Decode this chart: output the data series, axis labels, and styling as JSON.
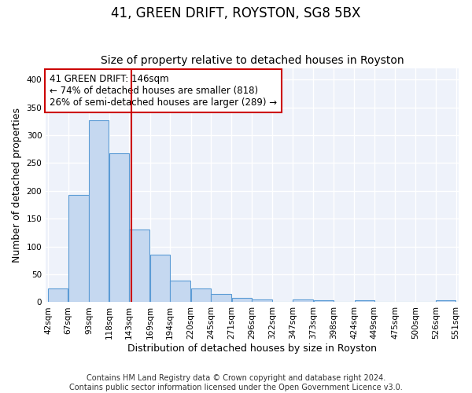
{
  "title": "41, GREEN DRIFT, ROYSTON, SG8 5BX",
  "subtitle": "Size of property relative to detached houses in Royston",
  "xlabel": "Distribution of detached houses by size in Royston",
  "ylabel": "Number of detached properties",
  "bin_edges": [
    42,
    67,
    93,
    118,
    143,
    169,
    194,
    220,
    245,
    271,
    296,
    322,
    347,
    373,
    398,
    424,
    449,
    475,
    500,
    526,
    551
  ],
  "bar_heights": [
    25,
    193,
    327,
    267,
    131,
    86,
    39,
    25,
    15,
    8,
    5,
    0,
    5,
    3,
    0,
    4,
    0,
    0,
    0,
    3
  ],
  "bar_color": "#c5d8f0",
  "bar_edge_color": "#5b9bd5",
  "background_color": "#eef2fa",
  "grid_color": "#ffffff",
  "ylim": [
    0,
    420
  ],
  "yticks": [
    0,
    50,
    100,
    150,
    200,
    250,
    300,
    350,
    400
  ],
  "vline_x": 146,
  "vline_color": "#cc0000",
  "annotation_text": "41 GREEN DRIFT: 146sqm\n← 74% of detached houses are smaller (818)\n26% of semi-detached houses are larger (289) →",
  "annotation_box_color": "#cc0000",
  "footer_line1": "Contains HM Land Registry data © Crown copyright and database right 2024.",
  "footer_line2": "Contains public sector information licensed under the Open Government Licence v3.0.",
  "title_fontsize": 12,
  "subtitle_fontsize": 10,
  "xlabel_fontsize": 9,
  "ylabel_fontsize": 9,
  "tick_label_fontsize": 7.5,
  "annotation_fontsize": 8.5,
  "footer_fontsize": 7
}
